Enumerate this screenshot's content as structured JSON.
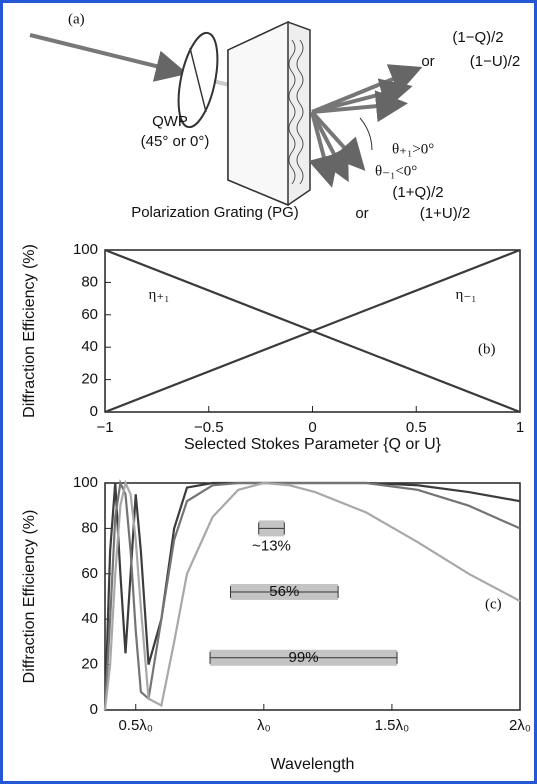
{
  "diagram": {
    "panel_label": "(a)",
    "qwp": "QWP",
    "qwp_angle": "(45° or 0°)",
    "grating": "Polarization Grating (PG)",
    "upper_order": [
      "(1−Q)/2",
      "or",
      "(1−U)/2"
    ],
    "theta_plus": "θ₊₁>0°",
    "theta_minus": "θ₋₁<0°",
    "lower_order": [
      "(1+Q)/2",
      "or",
      "(1+U)/2"
    ]
  },
  "chart_data": [
    {
      "type": "line",
      "panel_label": "(b)",
      "xlabel": "Selected Stokes Parameter {Q or U}",
      "ylabel": "Diffraction Efficiency (%)",
      "x": [
        -1,
        1
      ],
      "xlim": [
        -1,
        1
      ],
      "ylim": [
        0,
        100
      ],
      "xticks": [
        {
          "value": -1,
          "label": "−1"
        },
        {
          "value": -0.5,
          "label": "−0.5"
        },
        0,
        0.5,
        1
      ],
      "yticks": [
        0,
        20,
        40,
        60,
        80,
        100
      ],
      "series": [
        {
          "name": "η₊₁",
          "color": "#3a3a3a",
          "values": [
            100,
            0
          ]
        },
        {
          "name": "η₋₁",
          "color": "#3a3a3a",
          "values": [
            0,
            100
          ]
        }
      ]
    },
    {
      "type": "line",
      "panel_label": "(c)",
      "xlabel": "Wavelength",
      "ylabel": "Diffraction Efficiency (%)",
      "x": [
        0.38,
        0.4,
        0.42,
        0.44,
        0.46,
        0.48,
        0.5,
        0.52,
        0.55,
        0.6,
        0.65,
        0.7,
        0.8,
        0.9,
        1.0,
        1.1,
        1.2,
        1.4,
        1.6,
        1.8,
        2.0
      ],
      "xlim": [
        0.38,
        2
      ],
      "ylim": [
        0,
        100
      ],
      "xticks": [
        {
          "value": 0.5,
          "label": "0.5λ₀"
        },
        {
          "value": 1,
          "label": "λ₀"
        },
        {
          "value": 1.5,
          "label": "1.5λ₀"
        },
        {
          "value": 2,
          "label": "2λ₀"
        }
      ],
      "yticks": [
        0,
        20,
        40,
        60,
        80,
        100
      ],
      "series": [
        {
          "color": "#3c3c3c",
          "values": [
            0,
            70,
            100,
            60,
            25,
            60,
            95,
            70,
            20,
            40,
            80,
            98,
            100,
            100,
            100,
            100,
            100,
            100,
            99,
            96,
            92
          ]
        },
        {
          "color": "#747474",
          "values": [
            0,
            40,
            85,
            100,
            95,
            70,
            35,
            8,
            5,
            40,
            75,
            92,
            99,
            100,
            100,
            100,
            100,
            100,
            97,
            90,
            80
          ]
        },
        {
          "color": "#a8a8a8",
          "values": [
            0,
            20,
            60,
            90,
            100,
            95,
            75,
            45,
            5,
            2,
            30,
            60,
            85,
            97,
            100,
            99,
            96,
            87,
            74,
            60,
            48
          ]
        }
      ],
      "annotations": [
        {
          "text": "~13%",
          "x_range": [
            0.98,
            1.08
          ],
          "y": 80
        },
        {
          "text": "56%",
          "x_range": [
            0.87,
            1.29
          ],
          "y": 52
        },
        {
          "text": "99%",
          "x_range": [
            0.79,
            1.52
          ],
          "y": 23
        }
      ]
    }
  ]
}
